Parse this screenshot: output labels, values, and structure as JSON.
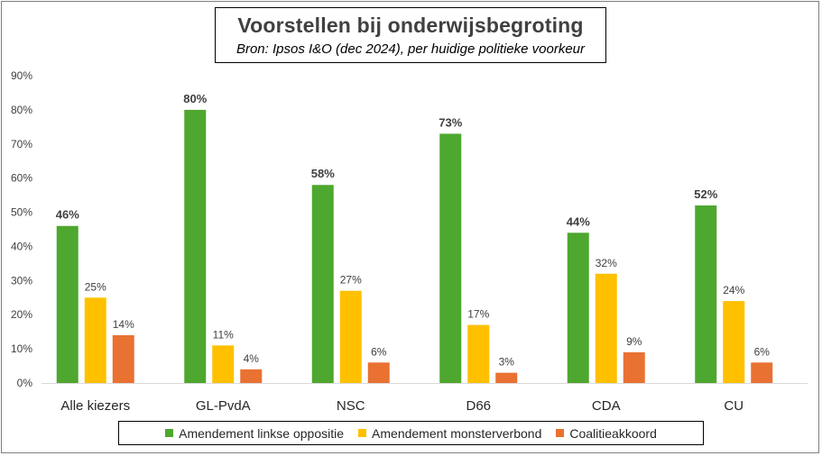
{
  "chart_data": {
    "type": "bar",
    "title": "Voorstellen bij onderwijsbegroting",
    "subtitle": "Bron: Ipsos I&O (dec 2024), per huidige politieke voorkeur",
    "categories": [
      "Alle kiezers",
      "GL-PvdA",
      "NSC",
      "D66",
      "CDA",
      "CU"
    ],
    "series": [
      {
        "name": "Amendement linkse oppositie",
        "color": "#4ea72e",
        "values": [
          46,
          80,
          58,
          73,
          44,
          52
        ]
      },
      {
        "name": "Amendement monsterverbond",
        "color": "#ffc000",
        "values": [
          25,
          11,
          27,
          17,
          32,
          24
        ]
      },
      {
        "name": "Coalitieakkoord",
        "color": "#e97132",
        "values": [
          14,
          4,
          6,
          3,
          9,
          6
        ]
      }
    ],
    "y_ticks": [
      "0%",
      "10%",
      "20%",
      "30%",
      "40%",
      "50%",
      "60%",
      "70%",
      "80%",
      "90%"
    ],
    "ylim": [
      0,
      90
    ],
    "grid": false,
    "legend_position": "bottom"
  }
}
